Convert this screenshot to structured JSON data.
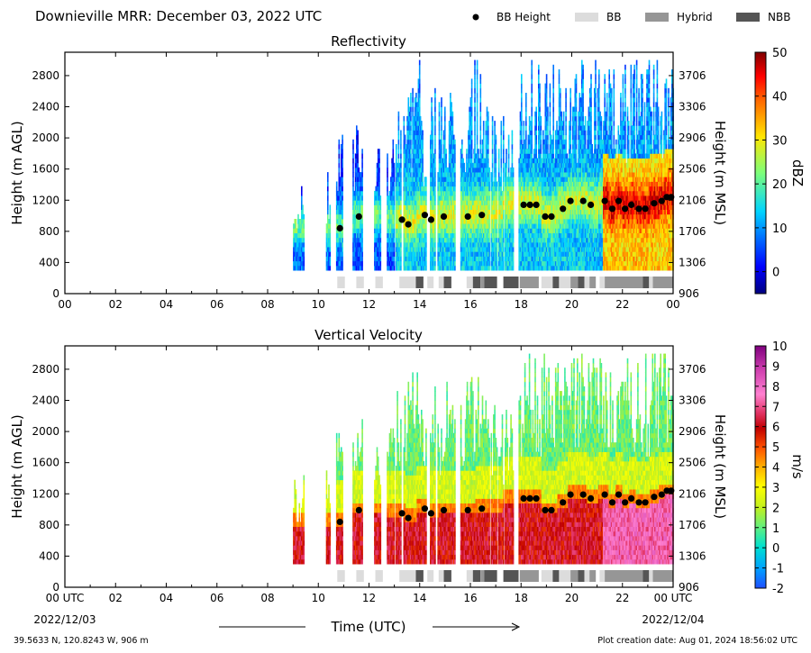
{
  "header": {
    "title": "Downieville MRR:  December 03, 2022 UTC",
    "legend": [
      {
        "label": "BB Height",
        "kind": "dot",
        "color": "#000000"
      },
      {
        "label": "BB",
        "kind": "patch",
        "color": "#dcdcdc"
      },
      {
        "label": "Hybrid",
        "kind": "patch",
        "color": "#969696"
      },
      {
        "label": "NBB",
        "kind": "patch",
        "color": "#555555"
      }
    ]
  },
  "footer": {
    "location": "39.5633 N, 120.8243 W, 906 m",
    "created": "Plot creation date: Aug 01, 2024 18:56:02 UTC",
    "xlabel": "Time (UTC)",
    "start_date": "2022/12/03",
    "end_date": "2022/12/04"
  },
  "chart_data": [
    {
      "type": "heatmap",
      "title": "Reflectivity",
      "ylabel": "Height (m AGL)",
      "y2label": "Height (m MSL)",
      "colorbar_label": "dBZ",
      "xlim": [
        0,
        24
      ],
      "ylim": [
        0,
        3100
      ],
      "x_ticks": [
        "00",
        "02",
        "04",
        "06",
        "08",
        "10",
        "12",
        "14",
        "16",
        "18",
        "20",
        "22",
        "00"
      ],
      "y_ticks": [
        0,
        400,
        800,
        1200,
        1600,
        2000,
        2400,
        2800
      ],
      "y2_ticks": [
        906,
        1306,
        1706,
        2106,
        2506,
        2906,
        3306,
        3706
      ],
      "colorbar": {
        "range": [
          -5,
          50
        ],
        "ticks": [
          0,
          10,
          20,
          30,
          40,
          50
        ],
        "colormap": "jet"
      }
    },
    {
      "type": "heatmap",
      "title": "Vertical Velocity",
      "ylabel": "Height (m AGL)",
      "y2label": "Height (m MSL)",
      "colorbar_label": "m/s",
      "xlim": [
        0,
        24
      ],
      "ylim": [
        0,
        3100
      ],
      "x_ticks": [
        "00 UTC",
        "02",
        "04",
        "06",
        "08",
        "10",
        "12",
        "14",
        "16",
        "18",
        "20",
        "22",
        "00 UTC"
      ],
      "y_ticks": [
        0,
        400,
        800,
        1200,
        1600,
        2000,
        2400,
        2800
      ],
      "y2_ticks": [
        906,
        1306,
        1706,
        2106,
        2506,
        2906,
        3306,
        3706
      ],
      "colorbar": {
        "range": [
          -2,
          10
        ],
        "ticks": [
          -2,
          -1,
          0,
          1,
          2,
          3,
          4,
          5,
          6,
          7,
          8,
          9,
          10
        ],
        "colormap": "velocity"
      }
    }
  ],
  "bb_height": {
    "hours": [
      10.85,
      11.6,
      13.3,
      13.55,
      14.2,
      14.45,
      14.95,
      15.9,
      16.45,
      18.1,
      18.35,
      18.6,
      18.95,
      19.2,
      19.65,
      19.95,
      20.45,
      20.75,
      21.3,
      21.6,
      21.85,
      22.1,
      22.35,
      22.65,
      22.9,
      23.25,
      23.55,
      23.75,
      23.92
    ],
    "heights_m_agl": [
      840,
      990,
      950,
      890,
      1010,
      950,
      990,
      990,
      1010,
      1140,
      1140,
      1140,
      990,
      990,
      1090,
      1190,
      1190,
      1140,
      1190,
      1090,
      1190,
      1090,
      1140,
      1090,
      1090,
      1160,
      1190,
      1240,
      1240
    ]
  },
  "bb_type_bar": [
    {
      "start": 10.75,
      "end": 11.05,
      "class": "BB"
    },
    {
      "start": 11.5,
      "end": 11.8,
      "class": "BB"
    },
    {
      "start": 12.25,
      "end": 12.55,
      "class": "BB"
    },
    {
      "start": 13.2,
      "end": 13.85,
      "class": "BB"
    },
    {
      "start": 13.85,
      "end": 14.15,
      "class": "NBB"
    },
    {
      "start": 14.3,
      "end": 14.55,
      "class": "BB"
    },
    {
      "start": 14.75,
      "end": 14.95,
      "class": "BB"
    },
    {
      "start": 14.95,
      "end": 15.25,
      "class": "NBB"
    },
    {
      "start": 15.85,
      "end": 16.1,
      "class": "BB"
    },
    {
      "start": 16.1,
      "end": 16.4,
      "class": "NBB"
    },
    {
      "start": 16.4,
      "end": 16.55,
      "class": "Hybrid"
    },
    {
      "start": 16.55,
      "end": 17.05,
      "class": "NBB"
    },
    {
      "start": 17.3,
      "end": 17.9,
      "class": "NBB"
    },
    {
      "start": 17.95,
      "end": 18.7,
      "class": "Hybrid"
    },
    {
      "start": 18.8,
      "end": 19.25,
      "class": "BB"
    },
    {
      "start": 19.25,
      "end": 19.5,
      "class": "NBB"
    },
    {
      "start": 19.5,
      "end": 19.95,
      "class": "BB"
    },
    {
      "start": 19.95,
      "end": 20.25,
      "class": "Hybrid"
    },
    {
      "start": 20.25,
      "end": 20.5,
      "class": "NBB"
    },
    {
      "start": 20.5,
      "end": 20.7,
      "class": "BB"
    },
    {
      "start": 20.7,
      "end": 20.95,
      "class": "Hybrid"
    },
    {
      "start": 21.1,
      "end": 21.3,
      "class": "BB"
    },
    {
      "start": 21.3,
      "end": 22.8,
      "class": "Hybrid"
    },
    {
      "start": 22.8,
      "end": 23.05,
      "class": "NBB"
    },
    {
      "start": 23.05,
      "end": 23.2,
      "class": "BB"
    },
    {
      "start": 23.2,
      "end": 24.0,
      "class": "Hybrid"
    }
  ],
  "echo_columns_hours": [
    [
      9.0,
      9.45,
      1450
    ],
    [
      10.3,
      10.45,
      1600
    ],
    [
      10.7,
      10.95,
      2050
    ],
    [
      11.35,
      11.75,
      2200
    ],
    [
      12.2,
      12.45,
      1900
    ],
    [
      12.7,
      13.0,
      2050
    ],
    [
      13.05,
      13.25,
      2550
    ],
    [
      13.35,
      13.7,
      2650
    ],
    [
      13.7,
      14.0,
      2950
    ],
    [
      14.0,
      14.25,
      2300
    ],
    [
      14.4,
      14.6,
      2650
    ],
    [
      14.7,
      15.05,
      2500
    ],
    [
      15.05,
      15.4,
      2700
    ],
    [
      15.6,
      15.85,
      2500
    ],
    [
      15.85,
      16.15,
      2800
    ],
    [
      16.15,
      16.45,
      3000
    ],
    [
      16.45,
      16.75,
      2450
    ],
    [
      16.8,
      17.05,
      2400
    ],
    [
      17.1,
      17.3,
      2300
    ],
    [
      17.35,
      17.7,
      2300
    ],
    [
      17.9,
      24.0,
      3000
    ]
  ]
}
